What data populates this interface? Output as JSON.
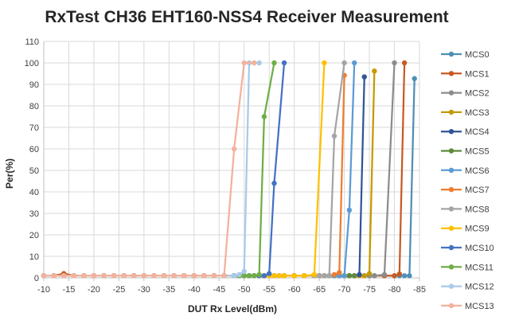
{
  "chart_data": {
    "type": "line",
    "title": "RxTest CH36 EHT160-NSS4 Receiver Measurement",
    "xlabel": "DUT Rx Level(dBm)",
    "ylabel": "Per(%)",
    "xlim": [
      -10,
      -85
    ],
    "ylim": [
      0,
      110
    ],
    "x_ticks": [
      -10,
      -15,
      -20,
      -25,
      -30,
      -35,
      -40,
      -45,
      -50,
      -55,
      -60,
      -65,
      -70,
      -75,
      -80,
      -85
    ],
    "x_tick_labels": [
      "-10",
      "-15",
      "-20",
      "-25",
      "-30",
      "-35",
      "-40",
      "-45",
      "-50",
      "-55",
      "-60",
      "-65",
      "-70",
      "-75",
      "-80",
      "-85"
    ],
    "y_ticks": [
      0,
      10,
      20,
      30,
      40,
      50,
      60,
      70,
      80,
      90,
      100,
      110
    ],
    "y_tick_labels": [
      "0",
      "10",
      "20",
      "30",
      "40",
      "50",
      "60",
      "70",
      "80",
      "90",
      "100",
      "110"
    ],
    "x": [
      -10,
      -12,
      -14,
      -16,
      -18,
      -20,
      -22,
      -24,
      -26,
      -28,
      -30,
      -32,
      -34,
      -36,
      -38,
      -40,
      -42,
      -44,
      -46,
      -48,
      -49,
      -50,
      -51,
      -52,
      -53,
      -54,
      -55,
      -56,
      -57,
      -58,
      -60,
      -62,
      -64,
      -65,
      -66,
      -67,
      -68,
      -69,
      -70,
      -71,
      -72,
      -73,
      -74,
      -75,
      -76,
      -78,
      -80,
      -81,
      -82,
      -83,
      -84
    ],
    "grid": true,
    "legend_position": "right",
    "series": [
      {
        "name": "MCS0",
        "color": "#4E8FB6",
        "values": [
          1,
          1,
          1,
          1,
          1,
          1,
          1,
          1,
          1,
          1,
          1,
          1,
          1,
          1,
          1,
          1,
          1,
          1,
          1,
          1,
          1,
          1,
          1,
          1,
          1,
          1,
          1,
          1,
          1,
          1,
          1,
          1,
          1,
          1,
          1,
          1,
          1,
          1,
          1,
          1,
          1,
          1,
          1,
          1,
          1,
          1,
          1,
          1,
          1,
          1,
          92.7
        ]
      },
      {
        "name": "MCS1",
        "color": "#C75A24",
        "values": [
          1,
          1,
          2,
          1,
          1,
          1,
          1,
          1,
          1,
          1,
          1,
          1,
          1,
          1,
          1,
          1,
          1,
          1,
          1,
          1,
          1,
          1,
          1,
          1,
          1,
          1,
          1,
          1,
          1,
          1,
          1,
          1,
          1,
          1,
          1,
          1,
          1,
          1,
          1,
          1,
          1,
          1,
          1,
          1,
          1,
          1,
          1,
          1.8,
          100,
          null,
          null
        ]
      },
      {
        "name": "MCS2",
        "color": "#8C8C8C",
        "values": [
          1,
          1,
          1,
          1,
          1,
          1,
          1,
          1,
          1,
          1,
          1,
          1,
          1,
          1,
          1,
          1,
          1,
          1,
          1,
          1,
          1,
          1,
          1,
          1,
          1,
          1,
          1,
          1,
          1,
          1,
          1,
          1,
          1,
          1,
          1,
          1,
          1,
          1,
          1,
          1,
          1,
          1,
          1,
          1,
          1,
          1.5,
          100,
          null,
          null,
          null,
          null
        ]
      },
      {
        "name": "MCS3",
        "color": "#C49A00",
        "values": [
          1,
          1,
          1,
          1,
          1,
          1,
          1,
          1,
          1,
          1,
          1,
          1,
          1,
          1,
          1,
          1,
          1,
          1,
          1,
          1,
          1,
          1,
          1,
          1,
          1,
          1,
          1,
          1,
          1,
          1,
          1,
          1,
          1,
          1,
          1,
          1,
          1,
          1,
          1,
          1,
          1,
          1,
          1,
          2,
          96.2,
          null,
          null,
          null,
          null,
          null,
          null
        ]
      },
      {
        "name": "MCS4",
        "color": "#2F5597",
        "values": [
          1,
          1,
          1,
          1,
          1,
          1,
          1,
          1,
          1,
          1,
          1,
          1,
          1,
          1,
          1,
          1,
          1,
          1,
          1,
          1,
          1,
          1,
          1,
          1,
          1,
          1,
          1,
          1,
          1,
          1,
          1,
          1,
          1,
          1,
          1,
          1,
          1,
          1,
          1,
          1,
          1,
          1.5,
          93.5,
          null,
          null,
          null,
          null,
          null,
          null,
          null,
          null
        ]
      },
      {
        "name": "MCS5",
        "color": "#5E8A3A",
        "values": [
          1,
          1,
          1,
          1,
          1,
          1,
          1,
          1,
          1,
          1,
          1,
          1,
          1,
          1,
          1,
          1,
          1,
          1,
          1,
          1,
          1,
          1,
          1,
          1,
          1,
          1,
          1,
          1,
          1,
          1,
          1,
          1,
          1,
          1,
          1,
          1,
          1,
          1,
          1,
          1,
          1,
          null,
          null,
          null,
          null,
          null,
          null,
          null,
          null,
          null,
          null
        ]
      },
      {
        "name": "MCS6",
        "color": "#5B9BD5",
        "values": [
          1,
          1,
          1,
          1,
          1,
          1,
          1,
          1,
          1,
          1,
          1,
          1,
          1,
          1,
          1,
          1,
          1,
          1,
          1,
          1,
          1,
          1,
          1,
          1,
          1,
          1,
          1,
          1,
          1,
          1,
          1,
          1,
          1,
          1,
          1,
          1,
          1,
          1,
          1,
          31.5,
          100,
          null,
          null,
          null,
          null,
          null,
          null,
          null,
          null,
          null,
          null
        ]
      },
      {
        "name": "MCS7",
        "color": "#ED7D31",
        "values": [
          1,
          1,
          1,
          1,
          1,
          1,
          1,
          1,
          1,
          1,
          1,
          1,
          1,
          1,
          1,
          1,
          1,
          1,
          1,
          1,
          1,
          1,
          1,
          1,
          1,
          1,
          1,
          1,
          1,
          1,
          1,
          1,
          1,
          1,
          1,
          1,
          1.5,
          2.5,
          94.2,
          null,
          null,
          null,
          null,
          null,
          null,
          null,
          null,
          null,
          null,
          null,
          null
        ]
      },
      {
        "name": "MCS8",
        "color": "#A5A5A5",
        "values": [
          1,
          1,
          1,
          1,
          1,
          1,
          1,
          1,
          1,
          1,
          1,
          1,
          1,
          1,
          1,
          1,
          1,
          1,
          1,
          1,
          1,
          1,
          1,
          1,
          1,
          1,
          1,
          1,
          1,
          1,
          1,
          1,
          1,
          1,
          1,
          1,
          66,
          null,
          100,
          null,
          null,
          null,
          null,
          null,
          null,
          null,
          null,
          null,
          null,
          null,
          null
        ]
      },
      {
        "name": "MCS9",
        "color": "#FFC000",
        "values": [
          1,
          1,
          1,
          1,
          1,
          1,
          1,
          1,
          1,
          1,
          1,
          1,
          1,
          1,
          1,
          1,
          1,
          1,
          1,
          1,
          1,
          1,
          1,
          1,
          1,
          1,
          1,
          1,
          1,
          1,
          1,
          1,
          1.5,
          null,
          100,
          null,
          null,
          null,
          null,
          null,
          null,
          null,
          null,
          null,
          null,
          null,
          null,
          null,
          null,
          null,
          null
        ]
      },
      {
        "name": "MCS10",
        "color": "#4472C4",
        "values": [
          1,
          1,
          1,
          1,
          1,
          1,
          1,
          1,
          1,
          1,
          1,
          1,
          1,
          1,
          1,
          1,
          1,
          1,
          1,
          1,
          1,
          1,
          1,
          1,
          1,
          1,
          2,
          44,
          null,
          100,
          null,
          null,
          null,
          null,
          null,
          null,
          null,
          null,
          null,
          null,
          null,
          null,
          null,
          null,
          null,
          null,
          null,
          null,
          null,
          null,
          null
        ]
      },
      {
        "name": "MCS11",
        "color": "#70AD47",
        "values": [
          1,
          1,
          1,
          1,
          1,
          1,
          1,
          1,
          1,
          1,
          1,
          1,
          1,
          1,
          1,
          1,
          1,
          1,
          1,
          1,
          1,
          1,
          1,
          1,
          1.5,
          75,
          null,
          100,
          null,
          null,
          null,
          null,
          null,
          null,
          null,
          null,
          null,
          null,
          null,
          null,
          null,
          null,
          null,
          null,
          null,
          null,
          null,
          null,
          null,
          null,
          null
        ]
      },
      {
        "name": "MCS12",
        "color": "#A9C9EA",
        "values": [
          1,
          1,
          1,
          1,
          1,
          1,
          1,
          1,
          1,
          1,
          1,
          1,
          1,
          1,
          1,
          1,
          1,
          1,
          1,
          1,
          1.5,
          3,
          100,
          null,
          100,
          null,
          null,
          null,
          null,
          null,
          null,
          null,
          null,
          null,
          null,
          null,
          null,
          null,
          null,
          null,
          null,
          null,
          null,
          null,
          null,
          null,
          null,
          null,
          null,
          null,
          null
        ]
      },
      {
        "name": "MCS13",
        "color": "#F4B19C",
        "values": [
          1,
          1,
          1,
          1,
          1,
          1,
          1,
          1,
          1,
          1,
          1,
          1,
          1,
          1,
          1,
          1,
          1,
          1,
          1,
          60,
          null,
          100,
          null,
          100,
          null,
          null,
          null,
          null,
          null,
          null,
          null,
          null,
          null,
          null,
          null,
          null,
          null,
          null,
          null,
          null,
          null,
          null,
          null,
          null,
          null,
          null,
          null,
          null,
          null,
          null,
          null
        ]
      }
    ]
  }
}
